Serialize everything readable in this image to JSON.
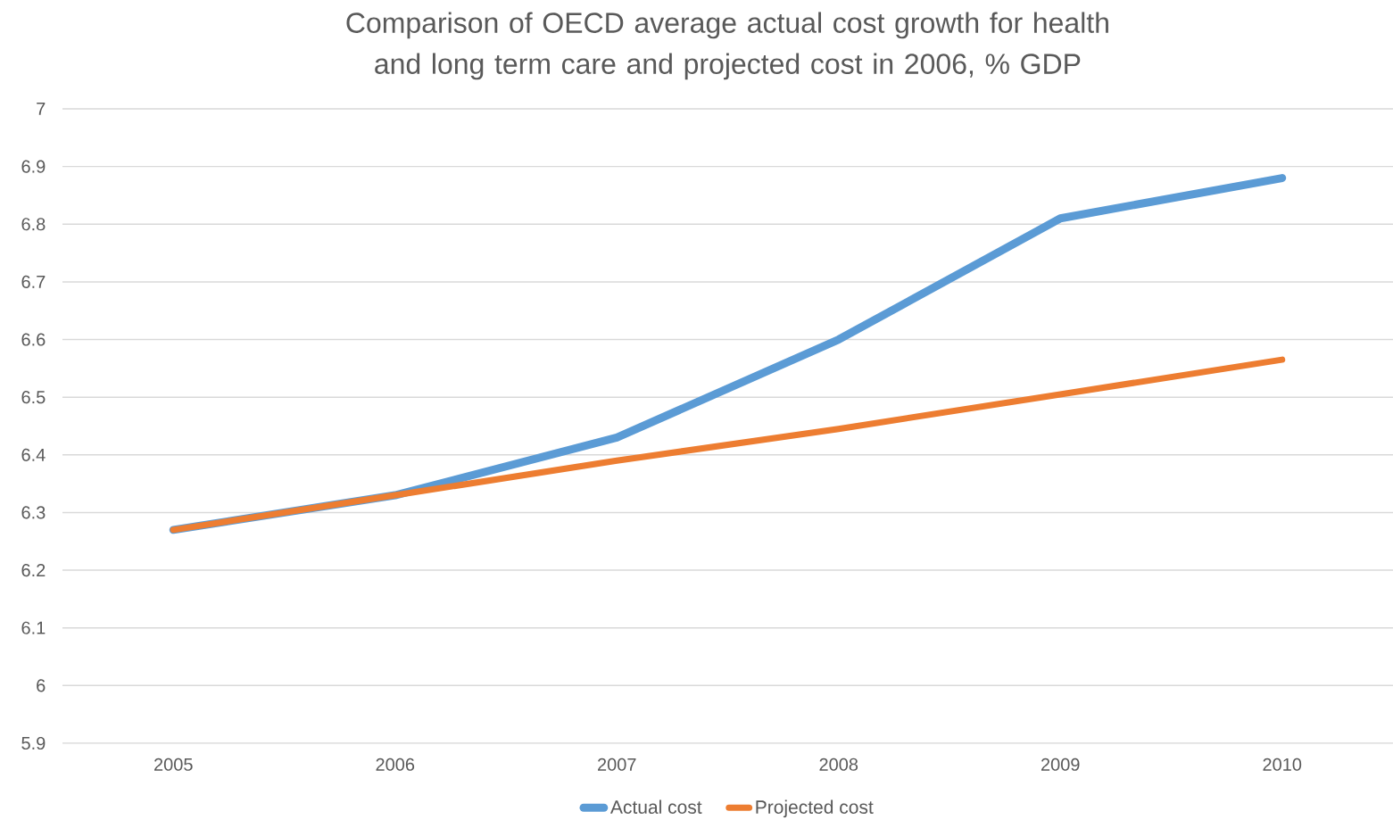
{
  "chart_data": {
    "type": "line",
    "title": "Comparison of OECD average actual cost growth for health and long term care and projected cost in 2006, % GDP",
    "categories": [
      "2005",
      "2006",
      "2007",
      "2008",
      "2009",
      "2010"
    ],
    "series": [
      {
        "name": "Actual cost",
        "color": "#5b9bd5",
        "values": [
          6.27,
          6.33,
          6.43,
          6.6,
          6.81,
          6.88
        ]
      },
      {
        "name": "Projected cost",
        "color": "#ed7d31",
        "values": [
          6.27,
          6.33,
          6.39,
          6.445,
          6.505,
          6.565
        ]
      }
    ],
    "ylim": [
      5.9,
      7
    ],
    "yticks": [
      5.9,
      6,
      6.1,
      6.2,
      6.3,
      6.4,
      6.5,
      6.6,
      6.7,
      6.8,
      6.9,
      7
    ],
    "grid": "y",
    "legend": "bottom",
    "marker": "none",
    "line_style": "solid"
  }
}
